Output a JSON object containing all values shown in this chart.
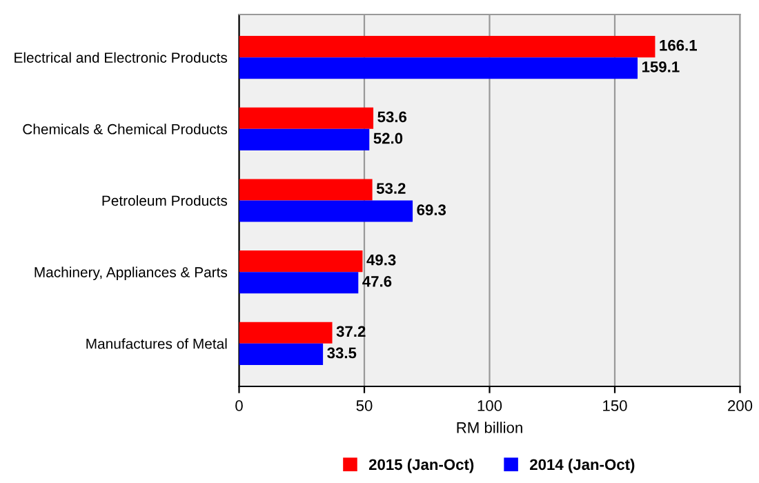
{
  "chart_data": {
    "type": "bar",
    "orientation": "horizontal",
    "xlabel": "RM billion",
    "categories": [
      "Electrical and Electronic Products",
      "Chemicals & Chemical Products",
      "Petroleum Products",
      "Machinery, Appliances & Parts",
      "Manufactures of Metal"
    ],
    "series": [
      {
        "name": "2015 (Jan-Oct)",
        "color": "#ff0000",
        "values": [
          166.1,
          53.6,
          53.2,
          49.3,
          37.2
        ],
        "value_labels": [
          "166.1",
          "53.6",
          "53.2",
          "49.3",
          "37.2"
        ]
      },
      {
        "name": "2014 (Jan-Oct)",
        "color": "#0000ff",
        "values": [
          159.1,
          52.0,
          69.3,
          47.6,
          33.5
        ],
        "value_labels": [
          "159.1",
          "52.0",
          "69.3",
          "47.6",
          "33.5"
        ]
      }
    ],
    "xlim": [
      0,
      200
    ],
    "xticks": [
      0,
      50,
      100,
      150,
      200
    ],
    "grid": "x",
    "legend": "bottom"
  }
}
